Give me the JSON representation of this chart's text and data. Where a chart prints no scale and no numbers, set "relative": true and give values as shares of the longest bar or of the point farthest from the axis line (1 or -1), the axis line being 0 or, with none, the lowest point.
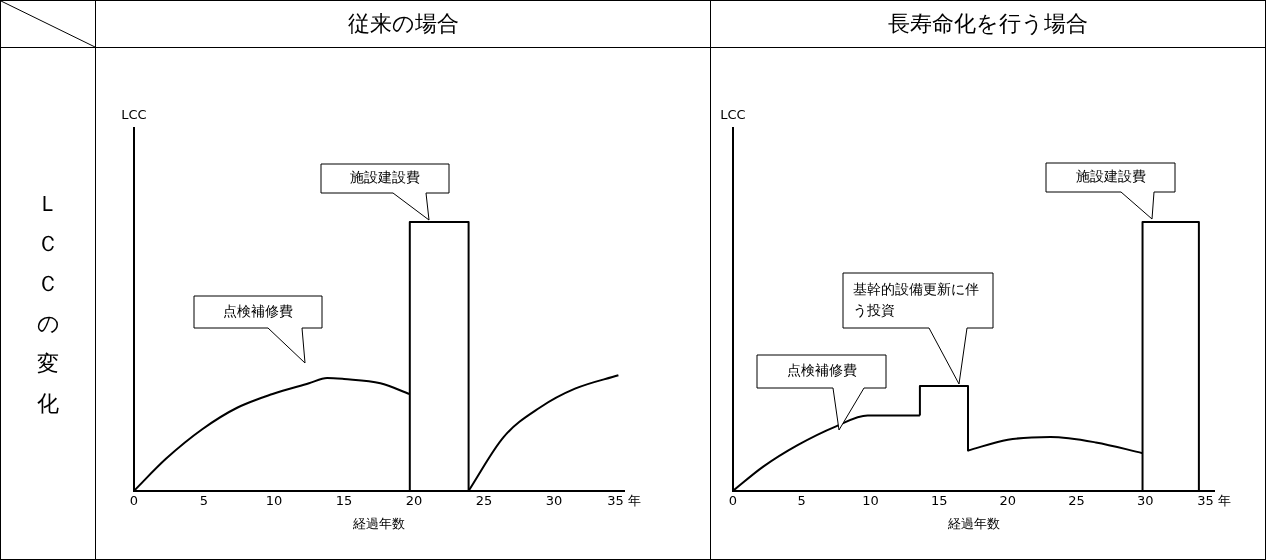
{
  "chart_data": [
    {
      "type": "line",
      "title": "従来の場合",
      "xlabel": "経過年数",
      "ylabel": "LCC",
      "relative": true,
      "xlim": [
        0,
        35
      ],
      "xticks": [
        0,
        5,
        10,
        15,
        20,
        25,
        30,
        {
          "value": 35,
          "label": "35 年"
        }
      ],
      "annotations": [
        "ＬＣＣの変化",
        "施設建設費",
        "点検補修費"
      ],
      "series": [
        {
          "color": "#000000",
          "x": [
            0,
            2.3,
            4.9,
            7.4,
            9.9,
            12.5,
            13.8,
            15,
            17.6,
            19.7
          ],
          "values": [
            0,
            0.12,
            0.23,
            0.31,
            0.36,
            0.4,
            0.42,
            0.416,
            0.4,
            0.36
          ]
        },
        {
          "color": "#000000",
          "x": [
            19.7,
            19.7,
            23.9,
            23.9
          ],
          "values": [
            0,
            1,
            1,
            0
          ]
        },
        {
          "color": "#000000",
          "x": [
            23.9,
            26.4,
            29,
            31.5,
            34.6
          ],
          "values": [
            0,
            0.2,
            0.31,
            0.38,
            0.43
          ]
        }
      ]
    },
    {
      "type": "line",
      "title": "長寿命化を行う場合",
      "xlabel": "経過年数",
      "ylabel": "LCC",
      "relative": true,
      "xlim": [
        0,
        35
      ],
      "xticks": [
        0,
        5,
        10,
        15,
        20,
        25,
        30,
        {
          "value": 35,
          "label": "35 年"
        }
      ],
      "annotations": [
        "施設建設費",
        "基幹的設備更新に伴う投資",
        "点検補修費"
      ],
      "series": [
        {
          "color": "#000000",
          "x": [
            0,
            2.2,
            4.7,
            7.5,
            9.8,
            13.6
          ],
          "values": [
            0,
            0.09,
            0.17,
            0.24,
            0.28,
            0.28
          ]
        },
        {
          "color": "#000000",
          "x": [
            13.6,
            13.6,
            17.1,
            17.1
          ],
          "values": [
            0.28,
            0.39,
            0.39,
            0.15
          ]
        },
        {
          "color": "#000000",
          "x": [
            17.1,
            20,
            23.1,
            26.4,
            29.8
          ],
          "values": [
            0.15,
            0.19,
            0.2,
            0.18,
            0.14
          ]
        },
        {
          "color": "#000000",
          "x": [
            29.8,
            29.8,
            33.9,
            33.9
          ],
          "values": [
            0,
            1,
            1,
            0
          ]
        }
      ]
    }
  ]
}
